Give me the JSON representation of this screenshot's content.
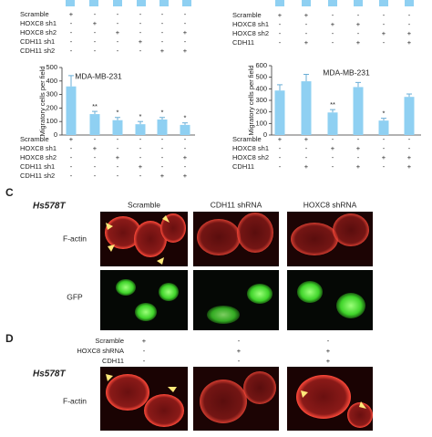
{
  "top_tables": [
    {
      "rows": [
        {
          "label": "Scramble",
          "signs": [
            "+",
            "-",
            "-",
            "-",
            "-",
            "-"
          ]
        },
        {
          "label": "HOXC8 sh1",
          "signs": [
            "-",
            "+",
            "-",
            "-",
            "-",
            "-"
          ]
        },
        {
          "label": "HOXC8 sh2",
          "signs": [
            "-",
            "-",
            "+",
            "-",
            "-",
            "+"
          ]
        },
        {
          "label": "CDH11 sh1",
          "signs": [
            "-",
            "-",
            "-",
            "+",
            "-",
            "-"
          ]
        },
        {
          "label": "CDH11 sh2",
          "signs": [
            "-",
            "-",
            "-",
            "-",
            "+",
            "+"
          ]
        }
      ]
    },
    {
      "rows": [
        {
          "label": "Scramble",
          "signs": [
            "+",
            "+",
            "-",
            "-",
            "-",
            "-"
          ]
        },
        {
          "label": "HOXC8 sh1",
          "signs": [
            "-",
            "-",
            "+",
            "+",
            "-",
            "-"
          ]
        },
        {
          "label": "HOXC8 sh2",
          "signs": [
            "-",
            "-",
            "-",
            "-",
            "+",
            "+"
          ]
        },
        {
          "label": "CDH11",
          "signs": [
            "-",
            "+",
            "-",
            "+",
            "-",
            "+"
          ]
        }
      ]
    }
  ],
  "chart_data": [
    {
      "type": "bar",
      "title": "MDA-MB-231",
      "y_label": "Migratory cells per field",
      "color": "#8fd0f2",
      "categories": [
        null,
        null,
        null,
        null,
        null,
        null
      ],
      "values": [
        360,
        155,
        110,
        80,
        115,
        75
      ],
      "errors": [
        80,
        20,
        20,
        20,
        15,
        15
      ],
      "annotations": [
        null,
        "**",
        "*",
        "*",
        "*",
        "*"
      ],
      "ylim": [
        0,
        500
      ],
      "yticks": [
        0,
        100,
        200,
        300,
        400,
        500
      ],
      "conditions": {
        "rows": [
          {
            "label": "Scramble",
            "signs": [
              "+",
              "-",
              "-",
              "-",
              "-",
              "-"
            ]
          },
          {
            "label": "HOXC8 sh1",
            "signs": [
              "-",
              "+",
              "-",
              "-",
              "-",
              "-"
            ]
          },
          {
            "label": "HOXC8 sh2",
            "signs": [
              "-",
              "-",
              "+",
              "-",
              "-",
              "+"
            ]
          },
          {
            "label": "CDH11 sh1",
            "signs": [
              "-",
              "-",
              "-",
              "+",
              "-",
              "-"
            ]
          },
          {
            "label": "CDH11 sh2",
            "signs": [
              "-",
              "-",
              "-",
              "-",
              "+",
              "+"
            ]
          }
        ]
      }
    },
    {
      "type": "bar",
      "title": "MDA-MB-231",
      "y_label": "Migratory cells per field",
      "color": "#8fd0f2",
      "categories": [
        null,
        null,
        null,
        null,
        null,
        null
      ],
      "values": [
        385,
        465,
        195,
        415,
        125,
        330
      ],
      "errors": [
        50,
        60,
        25,
        40,
        20,
        25
      ],
      "annotations": [
        null,
        null,
        "**",
        null,
        "*",
        null
      ],
      "ylim": [
        0,
        600
      ],
      "yticks": [
        0,
        100,
        200,
        300,
        400,
        500,
        600
      ],
      "conditions": {
        "rows": [
          {
            "label": "Scramble",
            "signs": [
              "+",
              "+",
              "-",
              "-",
              "-",
              "-"
            ]
          },
          {
            "label": "HOXC8 sh1",
            "signs": [
              "-",
              "-",
              "+",
              "+",
              "-",
              "-"
            ]
          },
          {
            "label": "HOXC8 sh2",
            "signs": [
              "-",
              "-",
              "-",
              "-",
              "+",
              "+"
            ]
          },
          {
            "label": "CDH11",
            "signs": [
              "-",
              "+",
              "-",
              "+",
              "-",
              "+"
            ]
          }
        ]
      }
    }
  ],
  "panel_c": {
    "letter": "C",
    "cell_line": "Hs578T",
    "columns": [
      "Scramble",
      "CDH11 shRNA",
      "HOXC8 shRNA"
    ],
    "rows": [
      "F-actin",
      "GFP"
    ]
  },
  "panel_d": {
    "letter": "D",
    "cell_line": "Hs578T",
    "rows": [
      "F-actin"
    ],
    "conditions": {
      "rows": [
        {
          "label": "Scramble",
          "signs": [
            "+",
            "-",
            "-"
          ]
        },
        {
          "label": "HOXC8 shRNA",
          "signs": [
            "-",
            "+",
            "+"
          ]
        },
        {
          "label": "CDH11",
          "signs": [
            "-",
            "-",
            "+"
          ]
        }
      ]
    }
  }
}
